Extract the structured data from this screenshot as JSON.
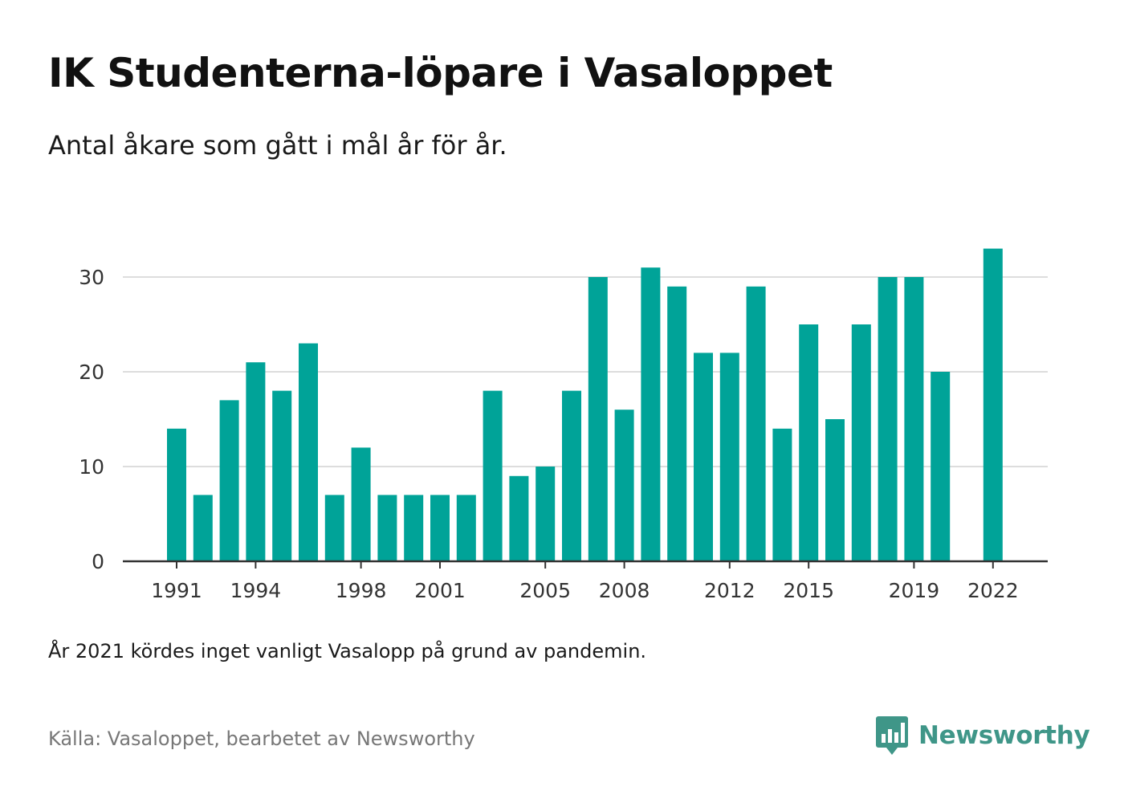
{
  "header": {
    "title": "IK Studenterna-löpare i Vasaloppet",
    "subtitle": "Antal åkare som gått i mål år för år."
  },
  "footer": {
    "note": "År 2021 kördes inget vanligt Vasalopp på grund av pandemin.",
    "source": "Källa: Vasaloppet, bearbetet av Newsworthy",
    "brand": "Newsworthy"
  },
  "colors": {
    "bar": "#00a398",
    "grid": "#dddddd",
    "axis": "#333333",
    "brand": "#3f9688"
  },
  "chart_data": {
    "type": "bar",
    "x": [
      1991,
      1992,
      1993,
      1994,
      1995,
      1996,
      1997,
      1998,
      1999,
      2000,
      2001,
      2002,
      2003,
      2004,
      2005,
      2006,
      2007,
      2008,
      2009,
      2010,
      2011,
      2012,
      2013,
      2014,
      2015,
      2016,
      2017,
      2018,
      2019,
      2020,
      2021,
      2022
    ],
    "values": [
      14,
      7,
      17,
      21,
      18,
      23,
      7,
      12,
      7,
      7,
      7,
      7,
      18,
      9,
      10,
      18,
      30,
      16,
      31,
      29,
      22,
      22,
      29,
      14,
      25,
      15,
      25,
      30,
      30,
      20,
      null,
      33
    ],
    "x_tick_labels": [
      "1991",
      "1994",
      "1998",
      "2001",
      "2005",
      "2008",
      "2012",
      "2015",
      "2019",
      "2022"
    ],
    "y_ticks": [
      0,
      10,
      20,
      30
    ],
    "ylim": [
      0,
      34
    ],
    "grid": true,
    "legend": "none"
  }
}
